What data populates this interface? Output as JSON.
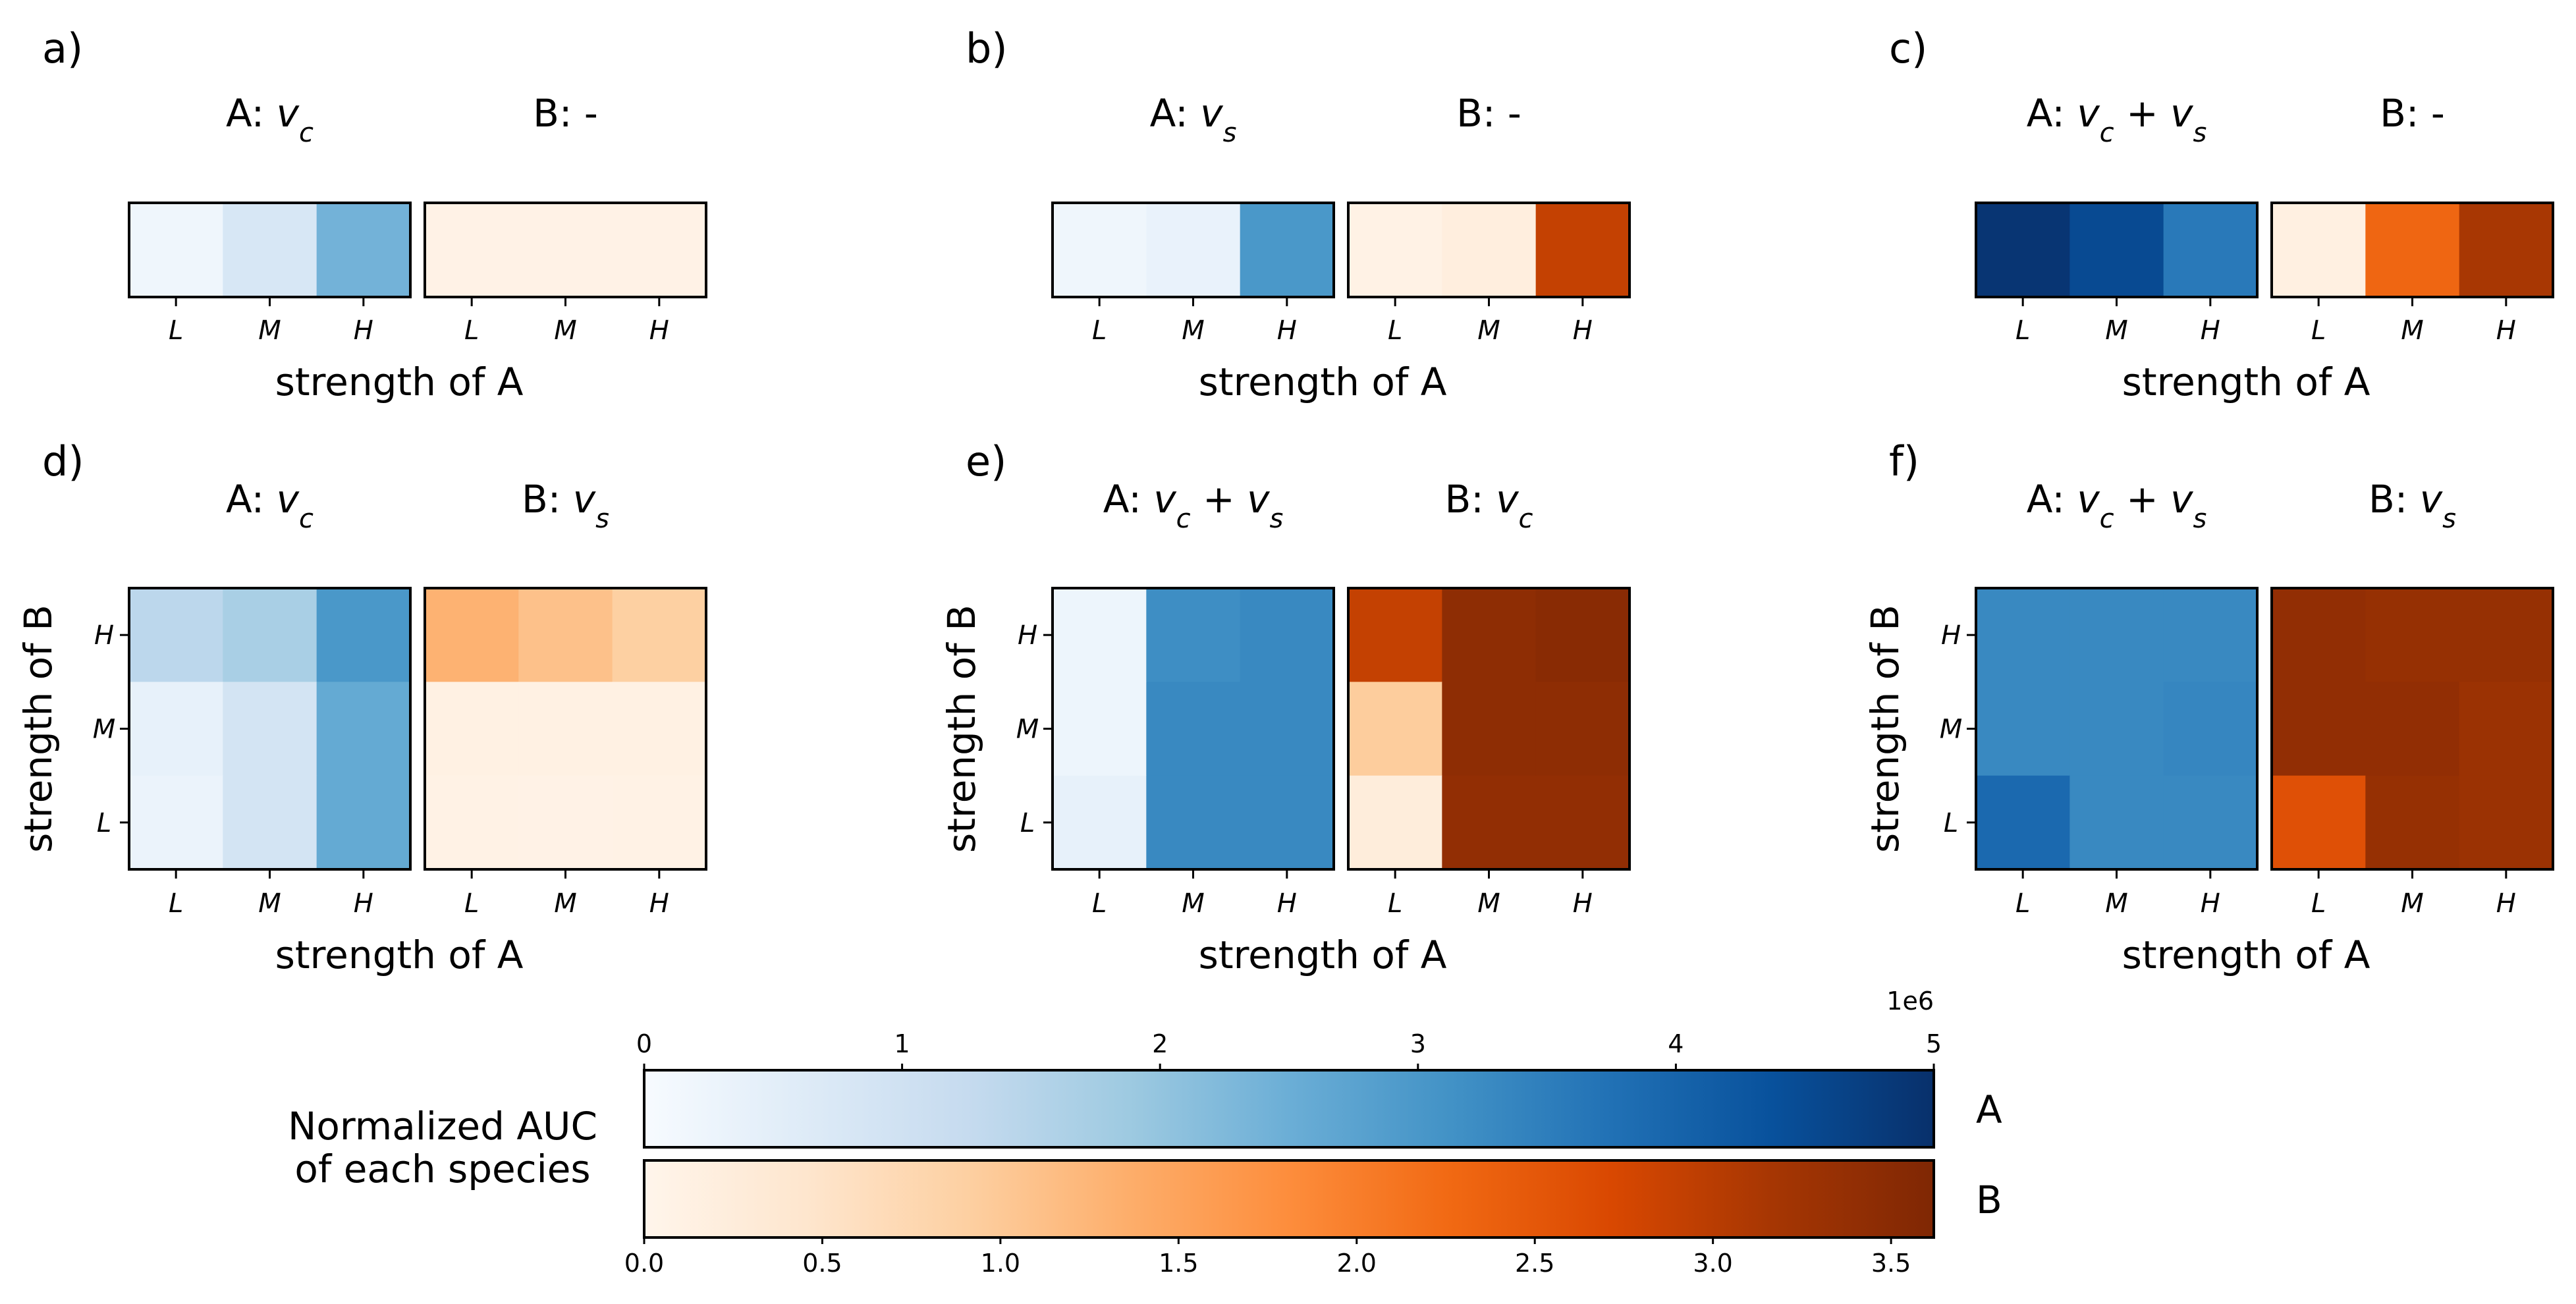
{
  "chart_data": {
    "type": "heatmap",
    "categories": [
      "L",
      "M",
      "H"
    ],
    "x_axis_label": "strength of A",
    "y_axis_label": "strength of B",
    "panels": [
      {
        "id": "a",
        "label": "a)",
        "A_title": {
          "prefix": "A: ",
          "terms": [
            "c"
          ]
        },
        "B_title": {
          "prefix": "B: -",
          "terms": []
        },
        "rows": 1,
        "A_values": [
          [
            200000.0,
            800000.0,
            2400000.0
          ]
        ],
        "B_values": [
          [
            0.08,
            0.08,
            0.08
          ]
        ]
      },
      {
        "id": "b",
        "label": "b)",
        "A_title": {
          "prefix": "A: ",
          "terms": [
            "s"
          ]
        },
        "B_title": {
          "prefix": "B: -",
          "terms": []
        },
        "rows": 1,
        "A_values": [
          [
            200000.0,
            350000.0,
            3000000.0
          ]
        ],
        "B_values": [
          [
            0.1,
            0.2,
            2.9
          ]
        ]
      },
      {
        "id": "c",
        "label": "c)",
        "A_title": {
          "prefix": "A: ",
          "terms": [
            "c",
            "s"
          ]
        },
        "B_title": {
          "prefix": "B: -",
          "terms": []
        },
        "rows": 1,
        "A_values": [
          [
            4900000.0,
            4500000.0,
            3600000.0
          ]
        ],
        "B_values": [
          [
            0.15,
            2.3,
            3.15
          ]
        ]
      },
      {
        "id": "d",
        "label": "d)",
        "A_title": {
          "prefix": "A: ",
          "terms": [
            "c"
          ]
        },
        "B_title": {
          "prefix": "B: ",
          "terms": [
            "s"
          ]
        },
        "rows": 3,
        "row_labels": [
          "H",
          "M",
          "L"
        ],
        "A_values": [
          [
            1400000.0,
            1700000.0,
            3000000.0
          ],
          [
            400000.0,
            900000.0,
            2600000.0
          ],
          [
            300000.0,
            900000.0,
            2600000.0
          ]
        ],
        "B_values": [
          [
            1.3,
            1.1,
            0.9
          ],
          [
            0.12,
            0.12,
            0.12
          ],
          [
            0.1,
            0.08,
            0.1
          ]
        ]
      },
      {
        "id": "e",
        "label": "e)",
        "A_title": {
          "prefix": "A: ",
          "terms": [
            "c",
            "s"
          ]
        },
        "B_title": {
          "prefix": "B: ",
          "terms": [
            "c"
          ]
        },
        "rows": 3,
        "row_labels": [
          "H",
          "M",
          "L"
        ],
        "A_values": [
          [
            250000.0,
            3200000.0,
            3300000.0
          ],
          [
            250000.0,
            3300000.0,
            3300000.0
          ],
          [
            400000.0,
            3300000.0,
            3300000.0
          ]
        ],
        "B_values": [
          [
            2.9,
            3.45,
            3.5
          ],
          [
            0.95,
            3.45,
            3.45
          ],
          [
            0.25,
            3.4,
            3.4
          ]
        ]
      },
      {
        "id": "f",
        "label": "f)",
        "A_title": {
          "prefix": "A: ",
          "terms": [
            "c",
            "s"
          ]
        },
        "B_title": {
          "prefix": "B: ",
          "terms": [
            "s"
          ]
        },
        "rows": 3,
        "row_labels": [
          "H",
          "M",
          "L"
        ],
        "A_values": [
          [
            3300000.0,
            3300000.0,
            3300000.0
          ],
          [
            3300000.0,
            3300000.0,
            3350000.0
          ],
          [
            3900000.0,
            3300000.0,
            3300000.0
          ]
        ],
        "B_values": [
          [
            3.4,
            3.35,
            3.35
          ],
          [
            3.4,
            3.4,
            3.3
          ],
          [
            2.6,
            3.35,
            3.3
          ]
        ]
      }
    ],
    "colorbar": {
      "label_lines": [
        "Normalized AUC",
        "of each species"
      ],
      "A": {
        "name": "A",
        "range": [
          0,
          5000000.0
        ],
        "ticks": [
          0,
          1,
          2,
          3,
          4,
          5
        ],
        "tick_labels": [
          "0",
          "1",
          "2",
          "3",
          "4",
          "5"
        ],
        "multiplier": "1e6",
        "cmap": "Blues"
      },
      "B": {
        "name": "B",
        "range": [
          0,
          3.62
        ],
        "ticks": [
          0,
          0.5,
          1,
          1.5,
          2,
          2.5,
          3,
          3.5
        ],
        "tick_labels": [
          "0.0",
          "0.5",
          "1.0",
          "1.5",
          "2.0",
          "2.5",
          "3.0",
          "3.5"
        ],
        "cmap": "Oranges"
      }
    }
  }
}
